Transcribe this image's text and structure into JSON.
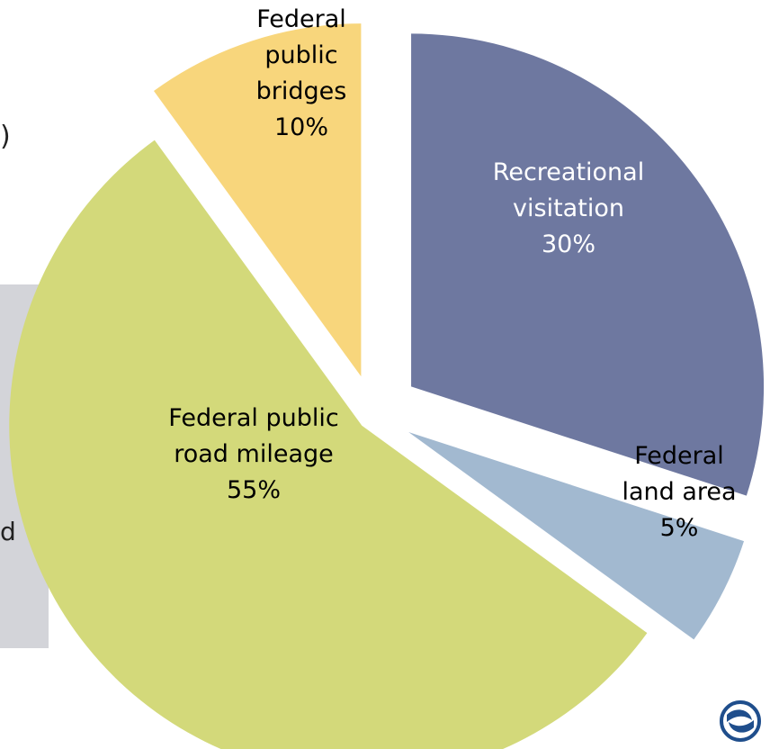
{
  "chart_data": {
    "type": "pie",
    "exploded": true,
    "slices": [
      {
        "label": [
          "Recreational",
          "visitation"
        ],
        "pct_label": "30%",
        "value": 30,
        "color": "#6e78a0",
        "text_color": "#ffffff"
      },
      {
        "label": [
          "Federal",
          "land area"
        ],
        "pct_label": "5%",
        "value": 5,
        "color": "#a2b9d0",
        "text_color": "#000000"
      },
      {
        "label": [
          "Federal public",
          "road mileage"
        ],
        "pct_label": "55%",
        "value": 55,
        "color": "#d3d97a",
        "text_color": "#000000"
      },
      {
        "label": [
          "Federal",
          "public",
          "bridges"
        ],
        "pct_label": "10%",
        "value": 10,
        "color": "#f8d67c",
        "text_color": "#000000"
      }
    ]
  },
  "edge_text": {
    "top_char": ")",
    "bottom_char": "d"
  },
  "colors": {
    "panel": "#d3d4d9",
    "logo": "#1f4e8c"
  },
  "icons": {
    "logo": "dot-logo-icon"
  }
}
